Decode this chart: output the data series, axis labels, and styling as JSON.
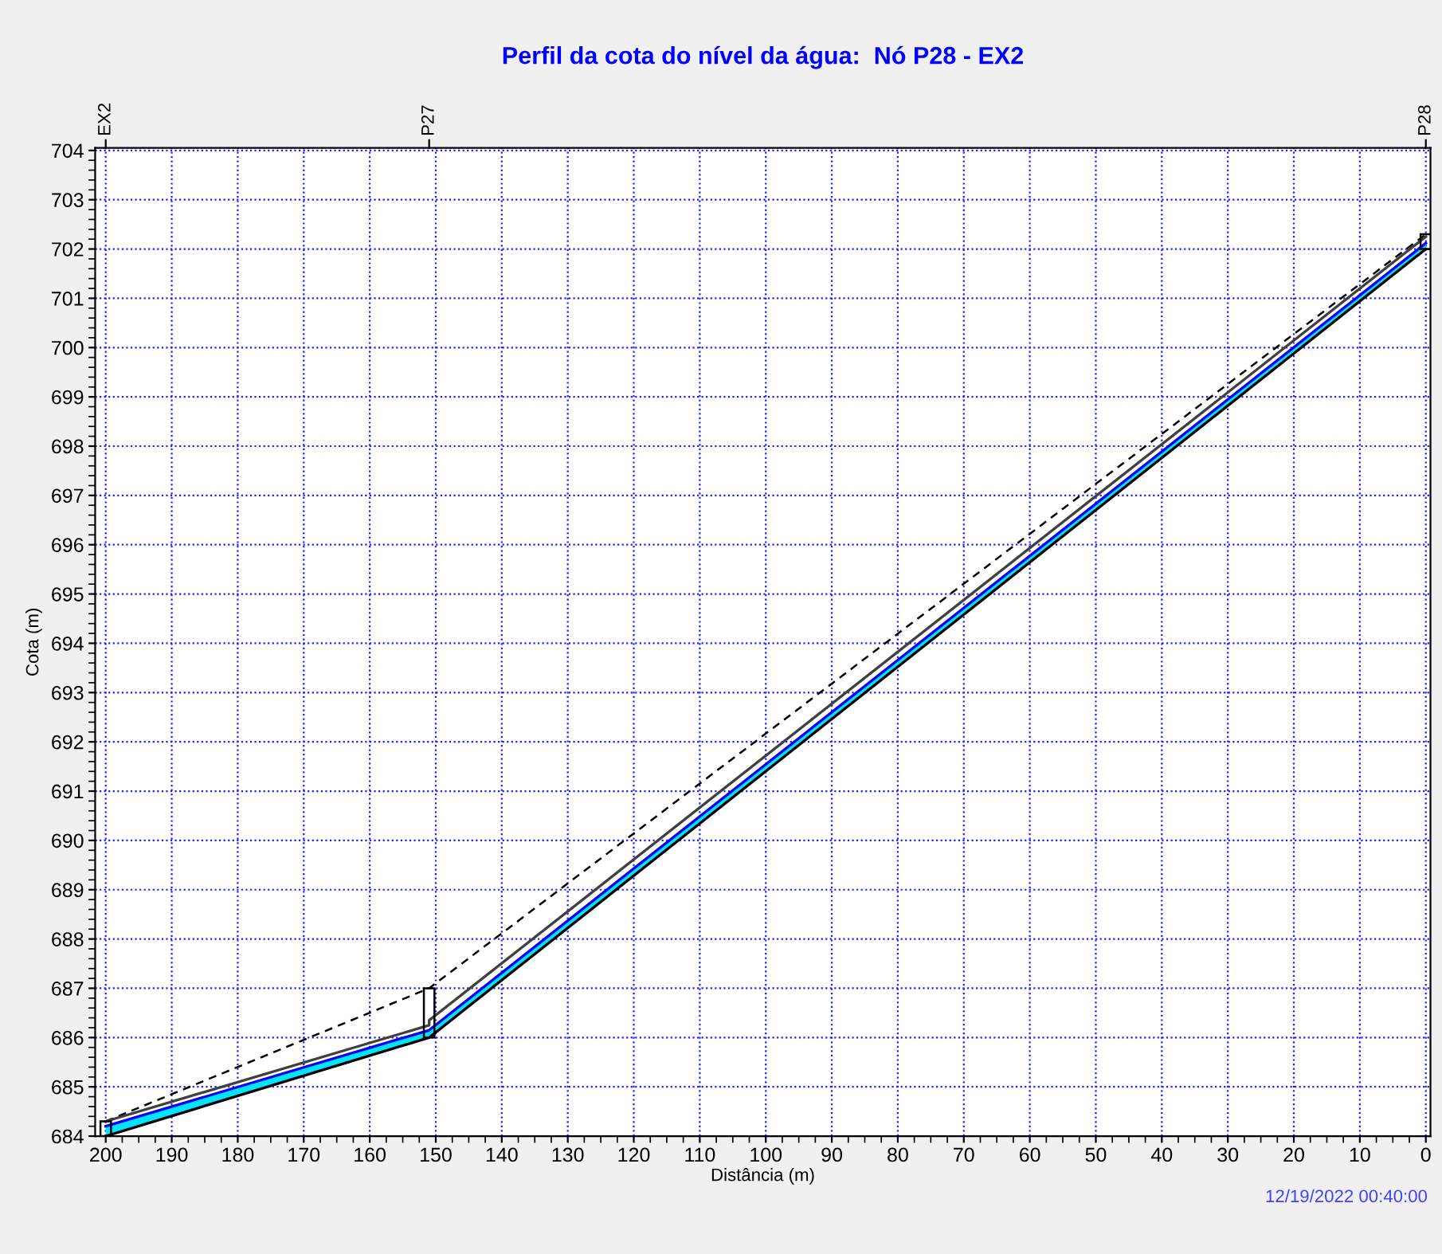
{
  "chart_data": {
    "type": "line",
    "title": "Perfil da cota do nível da água:  Nó P28 - EX2",
    "xlabel": "Distância (m)",
    "ylabel": "Cota (m)",
    "xlim": [
      201.6,
      -0.7
    ],
    "ylim": [
      684,
      704.05
    ],
    "xticks": [
      200,
      190,
      180,
      170,
      160,
      150,
      140,
      130,
      120,
      110,
      100,
      90,
      80,
      70,
      60,
      50,
      40,
      30,
      20,
      10,
      0
    ],
    "yticks": [
      684,
      685,
      686,
      687,
      688,
      689,
      690,
      691,
      692,
      693,
      694,
      695,
      696,
      697,
      698,
      699,
      700,
      701,
      702,
      703,
      704
    ],
    "grid": true,
    "series": [
      {
        "x": [
          200,
          151,
          0
        ],
        "values": [
          684.3,
          687.0,
          702.3
        ],
        "color": "#000000",
        "line_style": "dashed"
      },
      {
        "x": [
          200,
          151,
          151,
          0
        ],
        "values": [
          684.3,
          686.25,
          686.35,
          702.25
        ],
        "color": "#404040",
        "line_style": "solid"
      },
      {
        "x": [
          200,
          151,
          0
        ],
        "values": [
          684.2,
          686.15,
          702.12
        ],
        "lower": [
          684.0,
          686.0,
          702.0
        ],
        "upper": [
          684.2,
          686.15,
          702.12
        ],
        "color": "#0000ff",
        "line_style": "solid"
      },
      {
        "x": [
          200,
          151,
          0
        ],
        "values": [
          684.0,
          686.0,
          702.0
        ],
        "color": "#000000",
        "line_style": "solid"
      }
    ],
    "annotations": [
      "EX2",
      "P27",
      "P28",
      "12/19/2022 00:40:00"
    ]
  }
}
